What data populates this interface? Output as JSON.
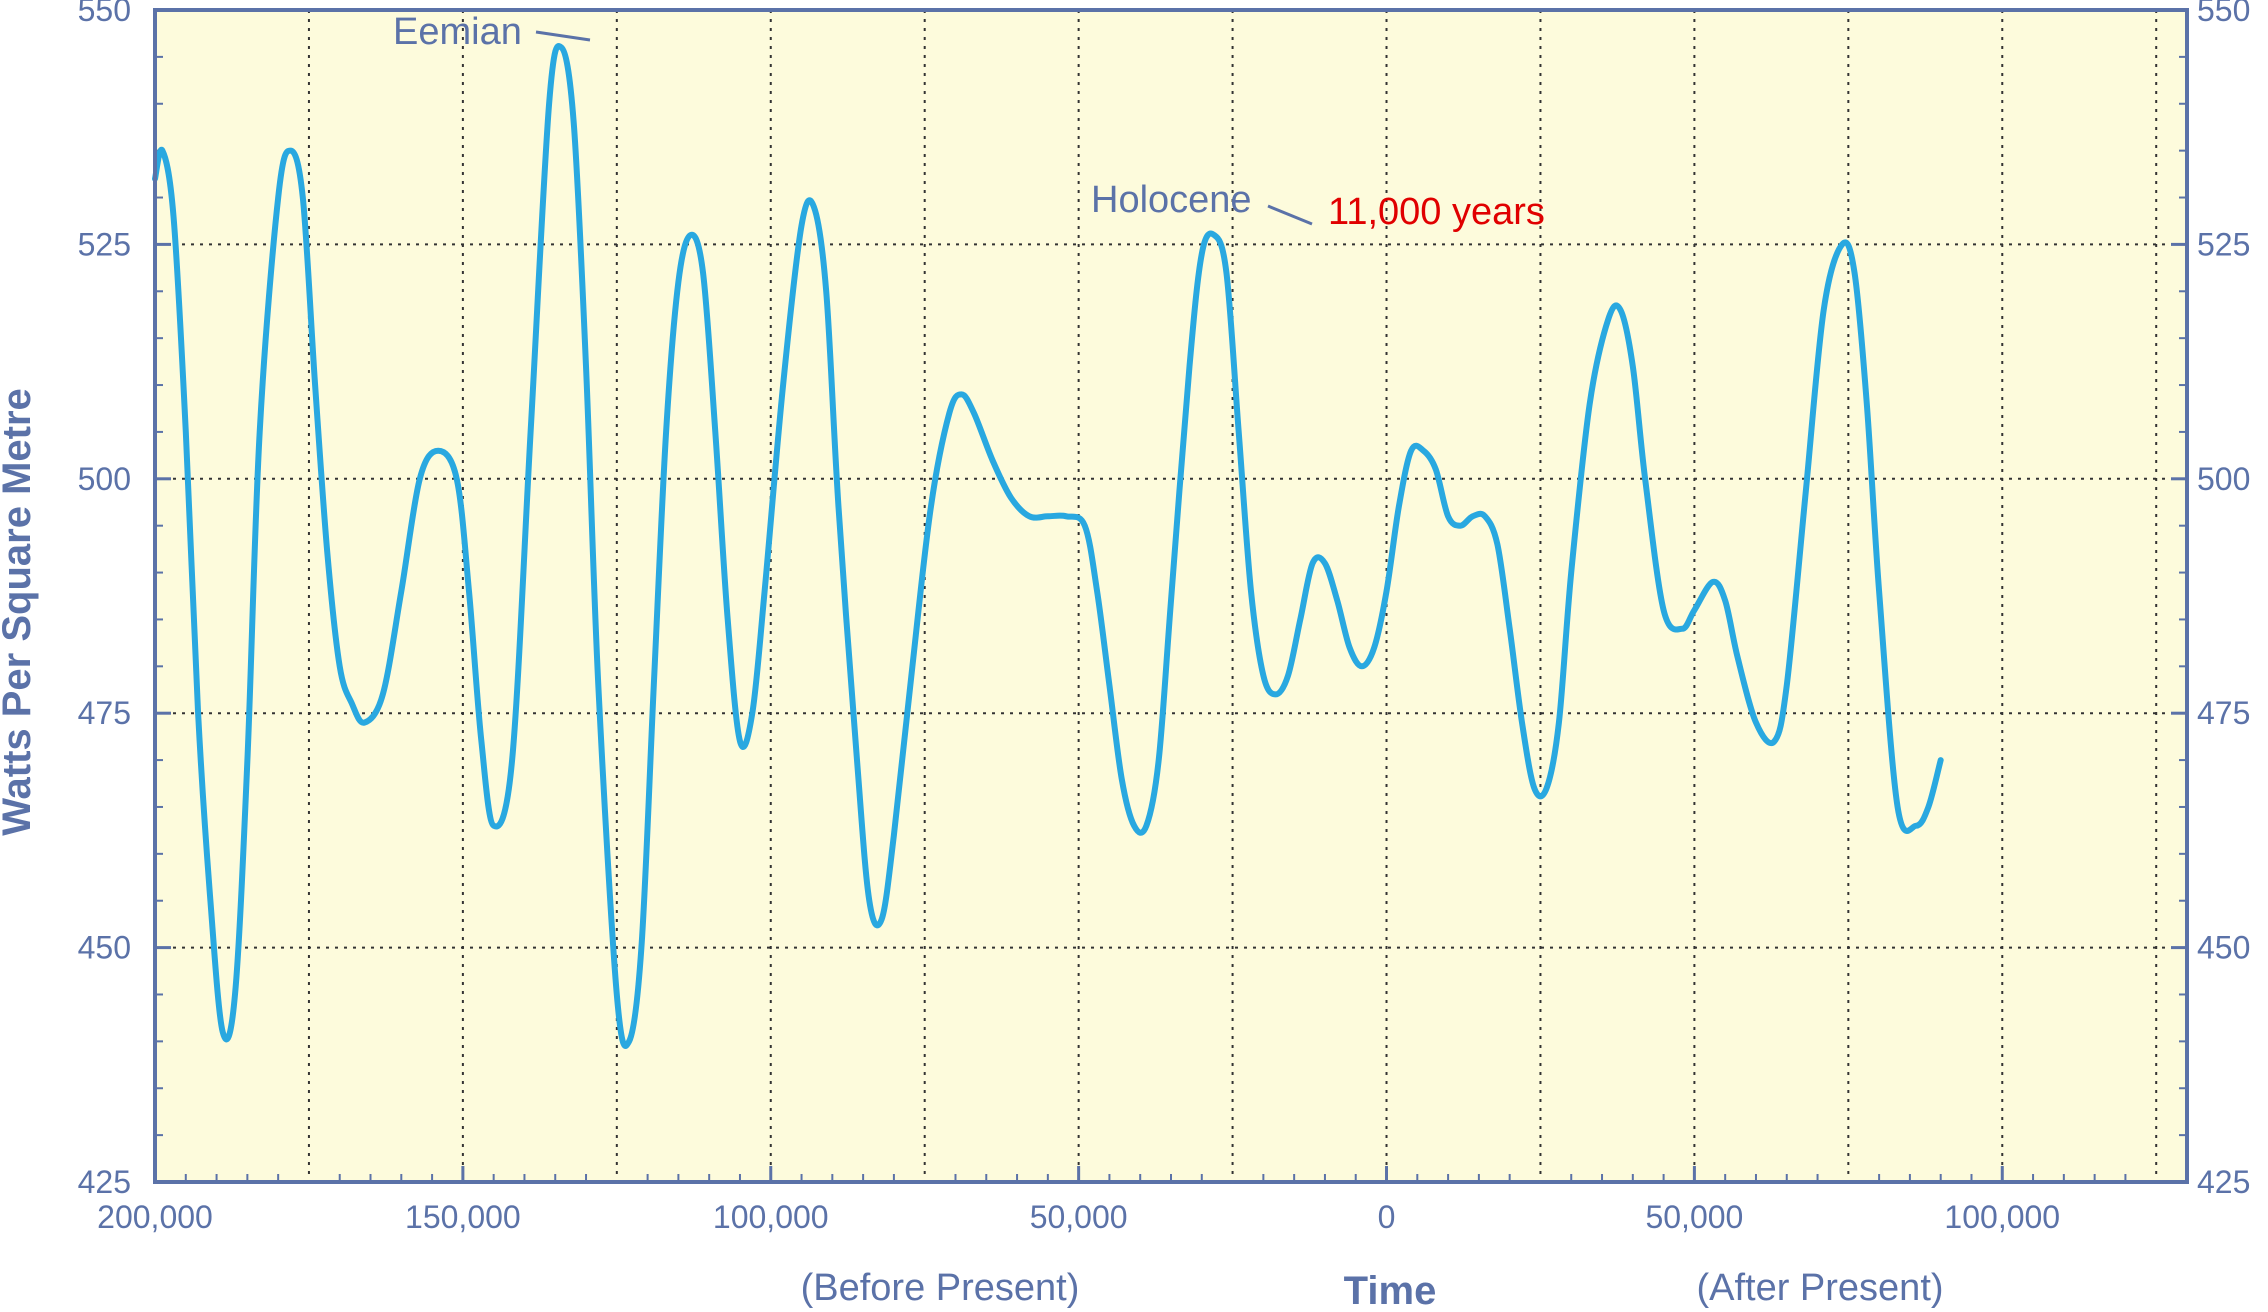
{
  "chart_data": {
    "type": "line",
    "ylabel": "Watts Per Square Metre",
    "xlabel": "Time",
    "x_caption_before": "(Before Present)",
    "x_caption_after": "(After Present)",
    "ylim": [
      425,
      550
    ],
    "xlim": [
      -200000,
      130000
    ],
    "y_ticks": [
      "425",
      "450",
      "475",
      "500",
      "525",
      "550"
    ],
    "x_ticks": [
      {
        "value": -200000,
        "label": "200,000"
      },
      {
        "value": -150000,
        "label": "150,000"
      },
      {
        "value": -100000,
        "label": "100,000"
      },
      {
        "value": -50000,
        "label": "50,000"
      },
      {
        "value": 0,
        "label": "0"
      },
      {
        "value": 50000,
        "label": "50,000"
      },
      {
        "value": 100000,
        "label": "100,000"
      }
    ],
    "grid": true,
    "background_color": "#fdfbdc",
    "line_color": "#29a8e0",
    "axis_color": "#5b72a8",
    "highlight_color": "#e00000",
    "series": [
      {
        "points": [
          [
            -200000,
            532
          ],
          [
            -198800,
            535
          ],
          [
            -197000,
            528
          ],
          [
            -195000,
            505
          ],
          [
            -193000,
            475
          ],
          [
            -191000,
            455
          ],
          [
            -189000,
            441
          ],
          [
            -187000,
            445
          ],
          [
            -185000,
            470
          ],
          [
            -183000,
            505
          ],
          [
            -180000,
            530
          ],
          [
            -178000,
            535
          ],
          [
            -176000,
            530
          ],
          [
            -174000,
            510
          ],
          [
            -172000,
            492
          ],
          [
            -170000,
            480
          ],
          [
            -168000,
            476
          ],
          [
            -166000,
            474
          ],
          [
            -163000,
            477
          ],
          [
            -160000,
            488
          ],
          [
            -157000,
            500
          ],
          [
            -154000,
            503
          ],
          [
            -151000,
            500
          ],
          [
            -149000,
            488
          ],
          [
            -147000,
            472
          ],
          [
            -145000,
            463
          ],
          [
            -142000,
            470
          ],
          [
            -139000,
            505
          ],
          [
            -136000,
            540
          ],
          [
            -134000,
            546
          ],
          [
            -132000,
            538
          ],
          [
            -130000,
            512
          ],
          [
            -128000,
            478
          ],
          [
            -125000,
            445
          ],
          [
            -123000,
            440
          ],
          [
            -121000,
            450
          ],
          [
            -119000,
            478
          ],
          [
            -117000,
            505
          ],
          [
            -115000,
            521
          ],
          [
            -113000,
            526
          ],
          [
            -111000,
            522
          ],
          [
            -109000,
            505
          ],
          [
            -107000,
            485
          ],
          [
            -105000,
            472
          ],
          [
            -103000,
            475
          ],
          [
            -101000,
            488
          ],
          [
            -98000,
            510
          ],
          [
            -95000,
            527
          ],
          [
            -93000,
            529
          ],
          [
            -91000,
            520
          ],
          [
            -89000,
            497
          ],
          [
            -86000,
            470
          ],
          [
            -84000,
            455
          ],
          [
            -82000,
            453
          ],
          [
            -80000,
            462
          ],
          [
            -77000,
            480
          ],
          [
            -74000,
            497
          ],
          [
            -71000,
            507
          ],
          [
            -69000,
            509
          ],
          [
            -67000,
            507
          ],
          [
            -64000,
            502
          ],
          [
            -61000,
            498
          ],
          [
            -58000,
            496
          ],
          [
            -55000,
            496
          ],
          [
            -52000,
            496
          ],
          [
            -49000,
            495
          ],
          [
            -47000,
            488
          ],
          [
            -45000,
            478
          ],
          [
            -43000,
            468
          ],
          [
            -41000,
            463
          ],
          [
            -39000,
            463
          ],
          [
            -37000,
            470
          ],
          [
            -35000,
            487
          ],
          [
            -32000,
            512
          ],
          [
            -30000,
            524
          ],
          [
            -28000,
            526
          ],
          [
            -26000,
            522
          ],
          [
            -24000,
            505
          ],
          [
            -22000,
            488
          ],
          [
            -20000,
            479
          ],
          [
            -18000,
            477
          ],
          [
            -16000,
            479
          ],
          [
            -14000,
            485
          ],
          [
            -12000,
            491
          ],
          [
            -10000,
            491
          ],
          [
            -8000,
            487
          ],
          [
            -6000,
            482
          ],
          [
            -4000,
            480
          ],
          [
            -2000,
            482
          ],
          [
            0,
            488
          ],
          [
            2000,
            497
          ],
          [
            4000,
            503
          ],
          [
            6000,
            503
          ],
          [
            8000,
            501
          ],
          [
            10000,
            496
          ],
          [
            12000,
            495
          ],
          [
            14000,
            496
          ],
          [
            16000,
            496
          ],
          [
            18000,
            493
          ],
          [
            20000,
            484
          ],
          [
            22000,
            474
          ],
          [
            24000,
            467
          ],
          [
            26000,
            467
          ],
          [
            28000,
            474
          ],
          [
            30000,
            490
          ],
          [
            33000,
            508
          ],
          [
            36000,
            517
          ],
          [
            38000,
            518
          ],
          [
            40000,
            512
          ],
          [
            42000,
            500
          ],
          [
            45000,
            486
          ],
          [
            48000,
            484
          ],
          [
            50000,
            486
          ],
          [
            53000,
            489
          ],
          [
            55000,
            487
          ],
          [
            57000,
            481
          ],
          [
            60000,
            474
          ],
          [
            63000,
            472
          ],
          [
            65000,
            478
          ],
          [
            68000,
            498
          ],
          [
            71000,
            518
          ],
          [
            74000,
            525
          ],
          [
            76000,
            522
          ],
          [
            78000,
            508
          ],
          [
            80000,
            488
          ],
          [
            83000,
            465
          ],
          [
            86000,
            463
          ],
          [
            88000,
            465
          ],
          [
            90000,
            470
          ]
        ]
      }
    ],
    "annotations": [
      {
        "text": "Eemian",
        "x": -134000,
        "y": 546
      },
      {
        "text": "Holocene",
        "x": -28000,
        "y": 526
      },
      {
        "text": "11,000 years",
        "x": -28000,
        "y": 526
      }
    ]
  }
}
